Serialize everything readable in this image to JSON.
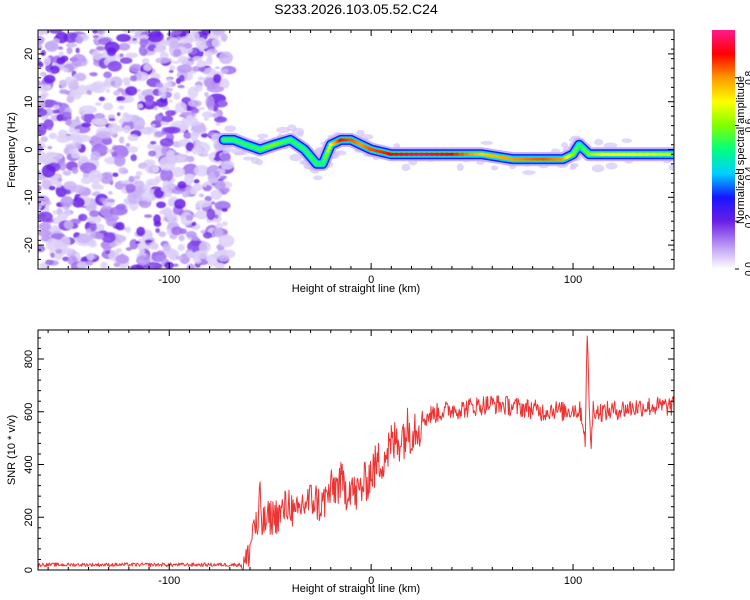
{
  "title": "S233.2026.103.05.52.C24",
  "chart_data": [
    {
      "type": "heatmap",
      "xlabel": "Height of straight line (km)",
      "ylabel": "Frequency (Hz)",
      "xlim": [
        -165,
        150
      ],
      "ylim": [
        -25,
        25
      ],
      "xticks": [
        -100,
        0,
        100
      ],
      "yticks": [
        -20,
        -10,
        0,
        10,
        20
      ],
      "colorbar": {
        "label": "Normalized spectral amplitude",
        "range": [
          0,
          1
        ],
        "ticks": [
          0.0,
          0.2,
          0.4,
          0.6,
          0.8
        ],
        "tick_labels": [
          "0.0",
          "0.2",
          "0.4",
          "0.6",
          "0.8"
        ],
        "colormap": [
          "#ffffff",
          "#b894f5",
          "#6a1fe6",
          "#1515ff",
          "#00d0ff",
          "#00ff7f",
          "#7fff00",
          "#ffff00",
          "#ff9900",
          "#ff0000",
          "#ff1a8c"
        ]
      },
      "noise_region": {
        "x_from": -165,
        "x_to": -72
      },
      "ridge": {
        "x": [
          -73,
          -68,
          -62,
          -55,
          -48,
          -40,
          -33,
          -27,
          -24,
          -20,
          -15,
          -10,
          -5,
          0,
          10,
          25,
          40,
          55,
          70,
          85,
          95,
          100,
          103,
          108,
          115,
          130,
          150
        ],
        "freq": [
          2,
          2,
          1,
          0,
          1,
          2,
          0,
          -3,
          -3,
          1,
          2,
          2,
          1,
          0,
          -1,
          -1,
          -1,
          -1,
          -2,
          -2,
          -2,
          -1,
          1,
          -1,
          -1,
          -1,
          -1
        ],
        "amplitude": [
          0.35,
          0.3,
          0.4,
          0.55,
          0.6,
          0.5,
          0.5,
          0.45,
          0.5,
          0.7,
          0.9,
          0.85,
          0.8,
          0.85,
          0.9,
          0.95,
          0.9,
          0.75,
          0.8,
          0.85,
          0.8,
          0.6,
          0.5,
          0.6,
          0.7,
          0.7,
          0.65
        ]
      }
    },
    {
      "type": "line",
      "xlabel": "Height of straight line (km)",
      "ylabel": "SNR (10 * v/v)",
      "xlim": [
        -165,
        150
      ],
      "ylim": [
        0,
        910
      ],
      "xticks": [
        -100,
        0,
        100
      ],
      "yticks": [
        0,
        200,
        400,
        600,
        800
      ],
      "series": [
        {
          "name": "SNR",
          "color": "#ee3333",
          "x": [
            -165,
            -140,
            -115,
            -90,
            -70,
            -64,
            -62,
            -60,
            -58,
            -56,
            -55,
            -54,
            -50,
            -45,
            -42,
            -40,
            -38,
            -36,
            -34,
            -31,
            -28,
            -25,
            -20,
            -17,
            -15,
            -12,
            -10,
            -8,
            -6,
            -3,
            0,
            5,
            10,
            15,
            20,
            25,
            30,
            35,
            40,
            45,
            50,
            60,
            70,
            80,
            85,
            90,
            95,
            100,
            104,
            106,
            107,
            108,
            109,
            110,
            112,
            115,
            125,
            135,
            145,
            150
          ],
          "y": [
            20,
            20,
            20,
            20,
            20,
            20,
            30,
            80,
            190,
            140,
            290,
            170,
            200,
            210,
            240,
            260,
            190,
            220,
            250,
            260,
            270,
            240,
            300,
            320,
            330,
            300,
            330,
            280,
            300,
            330,
            370,
            420,
            470,
            510,
            540,
            570,
            590,
            600,
            610,
            610,
            620,
            630,
            620,
            610,
            600,
            610,
            600,
            610,
            600,
            500,
            880,
            640,
            460,
            620,
            600,
            600,
            610,
            620,
            620,
            620
          ]
        }
      ]
    }
  ]
}
